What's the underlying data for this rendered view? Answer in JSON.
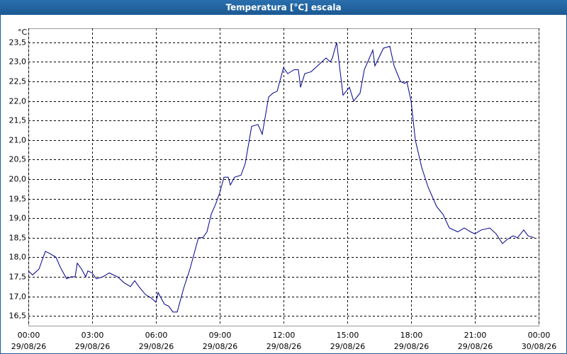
{
  "chart_data": {
    "type": "line",
    "title": "Temperatura [°C] escala",
    "y_unit": "°C",
    "x": [
      0,
      0.2,
      0.5,
      0.8,
      1.0,
      1.3,
      1.5,
      1.8,
      2.0,
      2.2,
      2.3,
      2.5,
      2.7,
      2.8,
      3.0,
      3.2,
      3.5,
      3.8,
      4.2,
      4.5,
      4.8,
      5.0,
      5.2,
      5.5,
      5.8,
      6.0,
      6.1,
      6.4,
      6.6,
      6.8,
      7.0,
      7.3,
      7.6,
      7.8,
      8.0,
      8.2,
      8.4,
      8.6,
      8.8,
      9.0,
      9.2,
      9.4,
      9.5,
      9.7,
      10.0,
      10.2,
      10.5,
      10.8,
      11.0,
      11.3,
      11.5,
      11.7,
      12.0,
      12.2,
      12.5,
      12.7,
      12.8,
      13.0,
      13.3,
      13.7,
      14.0,
      14.2,
      14.3,
      14.5,
      14.8,
      15.1,
      15.3,
      15.6,
      15.8,
      16.2,
      16.3,
      16.7,
      17.0,
      17.2,
      17.5,
      17.7,
      17.8,
      18.0,
      18.2,
      18.5,
      18.8,
      19.2,
      19.5,
      19.8,
      20.2,
      20.5,
      20.8,
      21.0,
      21.3,
      21.7,
      22.0,
      22.3,
      22.5,
      22.8,
      23.0,
      23.3,
      23.5,
      23.8
    ],
    "series": [
      {
        "name": "Temperatura",
        "color": "#00008b",
        "values": [
          17.65,
          17.55,
          17.7,
          18.15,
          18.1,
          18.0,
          17.75,
          17.45,
          17.5,
          17.5,
          17.85,
          17.7,
          17.5,
          17.65,
          17.6,
          17.45,
          17.5,
          17.6,
          17.5,
          17.35,
          17.25,
          17.4,
          17.25,
          17.05,
          16.95,
          16.85,
          17.1,
          16.8,
          16.75,
          16.6,
          16.6,
          17.2,
          17.7,
          18.1,
          18.5,
          18.5,
          18.65,
          19.1,
          19.35,
          19.65,
          20.05,
          20.05,
          19.85,
          20.05,
          20.1,
          20.4,
          21.35,
          21.4,
          21.15,
          22.1,
          22.2,
          22.25,
          22.85,
          22.7,
          22.8,
          22.8,
          22.35,
          22.7,
          22.75,
          22.95,
          23.1,
          23.0,
          23.1,
          23.5,
          22.15,
          22.35,
          22.0,
          22.2,
          22.8,
          23.3,
          22.9,
          23.35,
          23.4,
          22.9,
          22.5,
          22.45,
          22.5,
          22.0,
          21.0,
          20.3,
          19.8,
          19.3,
          19.1,
          18.75,
          18.65,
          18.75,
          18.65,
          18.6,
          18.7,
          18.75,
          18.6,
          18.35,
          18.45,
          18.55,
          18.5,
          18.7,
          18.55,
          18.5
        ]
      }
    ],
    "xlim": [
      0,
      24
    ],
    "xticks": [
      {
        "value": 0,
        "label": [
          "00:00",
          "29/08/26"
        ]
      },
      {
        "value": 3,
        "label": [
          "03:00",
          "29/08/26"
        ]
      },
      {
        "value": 6,
        "label": [
          "06:00",
          "29/08/26"
        ]
      },
      {
        "value": 9,
        "label": [
          "09:00",
          "29/08/26"
        ]
      },
      {
        "value": 12,
        "label": [
          "12:00",
          "29/08/26"
        ]
      },
      {
        "value": 15,
        "label": [
          "15:00",
          "29/08/26"
        ]
      },
      {
        "value": 18,
        "label": [
          "18:00",
          "29/08/26"
        ]
      },
      {
        "value": 21,
        "label": [
          "21:00",
          "29/08/26"
        ]
      },
      {
        "value": 24,
        "label": [
          "00:00",
          "30/08/26"
        ]
      }
    ],
    "ylim": [
      16.25,
      23.86
    ],
    "yticks": [
      {
        "value": 16.5,
        "label": "16,5"
      },
      {
        "value": 17,
        "label": "17,0"
      },
      {
        "value": 17.5,
        "label": "17,5"
      },
      {
        "value": 18,
        "label": "18,0"
      },
      {
        "value": 18.5,
        "label": "18,5"
      },
      {
        "value": 19,
        "label": "19,0"
      },
      {
        "value": 19.5,
        "label": "19,5"
      },
      {
        "value": 20,
        "label": "20,0"
      },
      {
        "value": 20.5,
        "label": "20,5"
      },
      {
        "value": 21,
        "label": "21,0"
      },
      {
        "value": 21.5,
        "label": "21,5"
      },
      {
        "value": 22,
        "label": "22,0"
      },
      {
        "value": 22.5,
        "label": "22,5"
      },
      {
        "value": 23,
        "label": "23,0"
      },
      {
        "value": 23.5,
        "label": "23,5"
      }
    ],
    "grid": true
  }
}
